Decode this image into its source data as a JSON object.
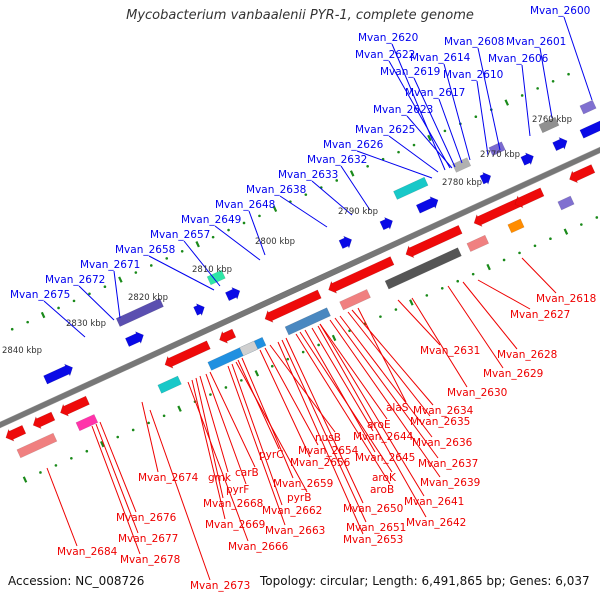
{
  "title": "Mycobacterium vanbaalenii PYR-1, complete genome",
  "footer": {
    "accession": "Accession: NC_008726",
    "summary": "Topology: circular; Length: 6,491,865 bp; Genes: 6,037"
  },
  "colors": {
    "forward_label": "#0000ee",
    "reverse_label": "#ee0000",
    "backbone": "#808080",
    "tick": "#1a8a1a",
    "forward_cds": "#0000ee",
    "reverse_cds": "#ee0000"
  },
  "kbp_ticks": [
    "2760 kbp",
    "2770 kbp",
    "2780 kbp",
    "2790 kbp",
    "2800 kbp",
    "2810 kbp",
    "2820 kbp",
    "2830 kbp",
    "2840 kbp"
  ],
  "forward_labels": [
    "Mvan_2600",
    "Mvan_2601",
    "Mvan_2606",
    "Mvan_2608",
    "Mvan_2610",
    "Mvan_2614",
    "Mvan_2617",
    "Mvan_2619",
    "Mvan_2620",
    "Mvan_2622",
    "Mvan_2623",
    "Mvan_2625",
    "Mvan_2626",
    "Mvan_2632",
    "Mvan_2633",
    "Mvan_2638",
    "Mvan_2648",
    "Mvan_2649",
    "Mvan_2657",
    "Mvan_2658",
    "Mvan_2671",
    "Mvan_2672",
    "Mvan_2675"
  ],
  "reverse_labels": [
    "Mvan_2618",
    "Mvan_2627",
    "Mvan_2628",
    "Mvan_2629",
    "Mvan_2630",
    "Mvan_2631",
    "Mvan_2634",
    "alaS",
    "Mvan_2635",
    "Mvan_2636",
    "Mvan_2637",
    "aroE",
    "Mvan_2644",
    "Mvan_2645",
    "Mvan_2639",
    "aroK",
    "aroB",
    "Mvan_2641",
    "Mvan_2642",
    "Mvan_2650",
    "Mvan_2651",
    "Mvan_2653",
    "nusB",
    "Mvan_2654",
    "Mvan_2656",
    "pyrC",
    "Mvan_2659",
    "pyrB",
    "Mvan_2662",
    "Mvan_2663",
    "carB",
    "gmk",
    "pyrF",
    "Mvan_2668",
    "Mvan_2669",
    "Mvan_2666",
    "Mvan_2674",
    "Mvan_2676",
    "Mvan_2677",
    "Mvan_2678",
    "Mvan_2684",
    "Mvan_2673"
  ]
}
